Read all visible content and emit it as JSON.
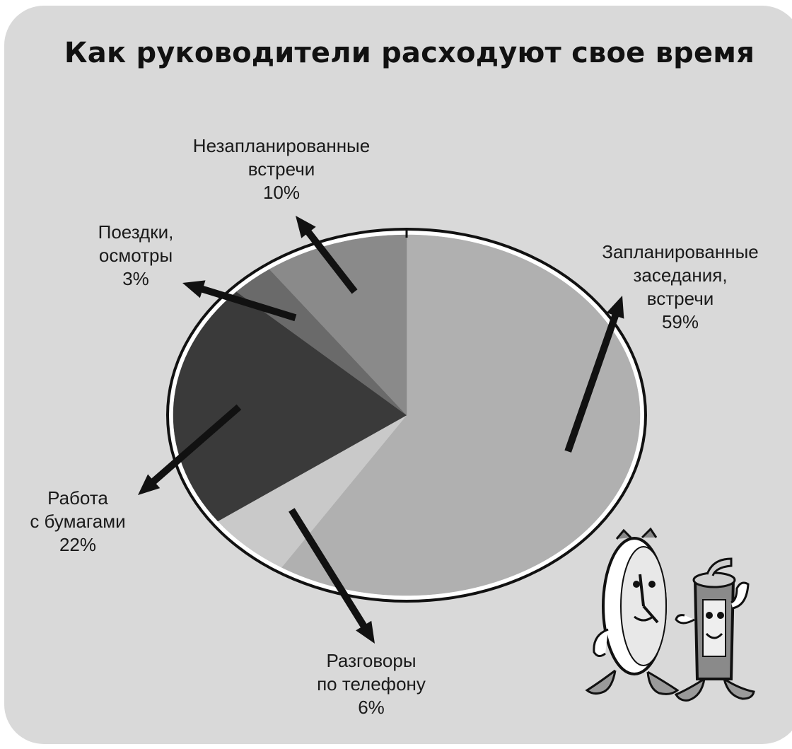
{
  "colors": {
    "background": "#d9d9d9",
    "outline": "#111111",
    "rim": "#ffffff",
    "arrow": "#111111"
  },
  "chart_data": {
    "type": "pie",
    "title": "Как руководители расходуют свое время",
    "slices": [
      {
        "key": "scheduled",
        "label_lines": [
          "Запланированные",
          "заседания,",
          "встречи"
        ],
        "value_text": "59%",
        "value": 59,
        "color": "#b0b0b0"
      },
      {
        "key": "phone",
        "label_lines": [
          "Разговоры",
          "по телефону"
        ],
        "value_text": "6%",
        "value": 6,
        "color": "#c9c9c9"
      },
      {
        "key": "paper",
        "label_lines": [
          "Работа",
          "с бумагами"
        ],
        "value_text": "22%",
        "value": 22,
        "color": "#3a3a3a"
      },
      {
        "key": "trips",
        "label_lines": [
          "Поездки,",
          "осмотры"
        ],
        "value_text": "3%",
        "value": 3,
        "color": "#6a6a6a"
      },
      {
        "key": "unscheduled",
        "label_lines": [
          "Незапланированные",
          "встречи"
        ],
        "value_text": "10%",
        "value": 10,
        "color": "#8a8a8a"
      }
    ],
    "legend": "none",
    "grid": false
  }
}
